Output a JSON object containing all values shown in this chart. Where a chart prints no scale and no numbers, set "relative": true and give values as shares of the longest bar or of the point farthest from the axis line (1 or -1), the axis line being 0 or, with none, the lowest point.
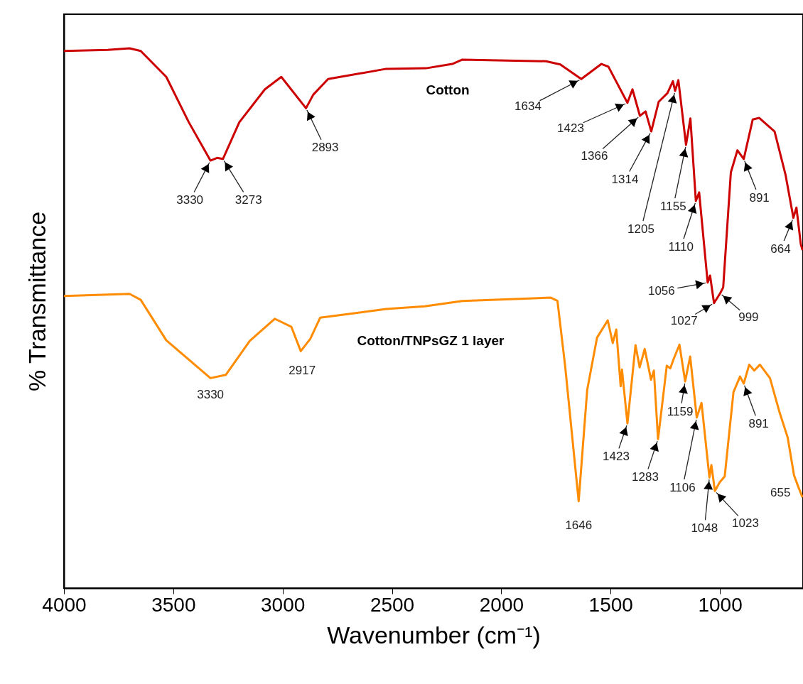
{
  "chart_data": {
    "type": "line",
    "relative": true,
    "xlabel": "Wavenumber (cm⁻¹)",
    "ylabel": "% Transmittance",
    "xlim": [
      4000,
      620
    ],
    "xticks": [
      4000,
      3500,
      3000,
      2500,
      2000,
      1500,
      1000
    ],
    "line_style": "solid",
    "marker": "none",
    "series": [
      {
        "name": "Cotton",
        "color": "#cc0000",
        "x": [
          4000,
          3800,
          3700,
          3649,
          3532,
          3429,
          3330,
          3300,
          3273,
          3198,
          3081,
          3006,
          2893,
          2860,
          2792,
          2526,
          2344,
          2224,
          2178,
          1795,
          1730,
          1634,
          1542,
          1510,
          1423,
          1400,
          1366,
          1340,
          1314,
          1280,
          1240,
          1215,
          1205,
          1190,
          1155,
          1135,
          1110,
          1095,
          1056,
          1045,
          1027,
          999,
          985,
          950,
          920,
          891,
          850,
          820,
          750,
          700,
          664,
          650,
          630,
          622
        ],
        "values": [
          0.995,
          0.997,
          1.0,
          0.995,
          0.947,
          0.863,
          0.792,
          0.797,
          0.795,
          0.863,
          0.924,
          0.947,
          0.889,
          0.914,
          0.943,
          0.962,
          0.963,
          0.971,
          0.979,
          0.976,
          0.97,
          0.943,
          0.971,
          0.966,
          0.899,
          0.924,
          0.875,
          0.883,
          0.846,
          0.901,
          0.917,
          0.939,
          0.921,
          0.941,
          0.821,
          0.87,
          0.717,
          0.733,
          0.566,
          0.579,
          0.528,
          0.546,
          0.557,
          0.77,
          0.811,
          0.795,
          0.868,
          0.871,
          0.846,
          0.766,
          0.686,
          0.705,
          0.637,
          0.626
        ]
      },
      {
        "name": "Cotton/TNPsGZ 1 layer",
        "color": "#ff8c00",
        "x": [
          4000,
          3700,
          3649,
          3532,
          3330,
          3260,
          3150,
          3036,
          2960,
          2917,
          2873,
          2828,
          2526,
          2350,
          2178,
          1773,
          1743,
          1708,
          1646,
          1607,
          1562,
          1513,
          1490,
          1474,
          1454,
          1448,
          1423,
          1386,
          1367,
          1344,
          1315,
          1302,
          1283,
          1243,
          1227,
          1211,
          1185,
          1159,
          1136,
          1106,
          1084,
          1048,
          1039,
          1023,
          1001,
          978,
          938,
          908,
          891,
          866,
          843,
          817,
          771,
          729,
          690,
          661,
          640,
          622
        ],
        "values": [
          0.541,
          0.545,
          0.534,
          0.459,
          0.389,
          0.395,
          0.458,
          0.499,
          0.484,
          0.439,
          0.462,
          0.501,
          0.517,
          0.522,
          0.532,
          0.538,
          0.532,
          0.412,
          0.161,
          0.367,
          0.464,
          0.496,
          0.454,
          0.479,
          0.374,
          0.405,
          0.305,
          0.45,
          0.409,
          0.443,
          0.386,
          0.403,
          0.276,
          0.412,
          0.407,
          0.425,
          0.451,
          0.383,
          0.429,
          0.316,
          0.343,
          0.205,
          0.228,
          0.18,
          0.196,
          0.207,
          0.363,
          0.392,
          0.379,
          0.414,
          0.403,
          0.414,
          0.389,
          0.328,
          0.279,
          0.209,
          0.186,
          0.168
        ]
      }
    ],
    "annotations": [
      {
        "text": "3330",
        "x": 3330,
        "y": 0.792
      },
      {
        "text": "3273",
        "x": 3273,
        "y": 0.795
      },
      {
        "text": "2893",
        "x": 2893,
        "y": 0.889
      },
      {
        "text": "1634",
        "x": 1634,
        "y": 0.943
      },
      {
        "text": "1423",
        "x": 1423,
        "y": 0.899
      },
      {
        "text": "1366",
        "x": 1366,
        "y": 0.875
      },
      {
        "text": "1314",
        "x": 1314,
        "y": 0.846
      },
      {
        "text": "1205",
        "x": 1205,
        "y": 0.921
      },
      {
        "text": "1155",
        "x": 1155,
        "y": 0.821
      },
      {
        "text": "1110",
        "x": 1110,
        "y": 0.717
      },
      {
        "text": "1056",
        "x": 1056,
        "y": 0.566
      },
      {
        "text": "1027",
        "x": 1027,
        "y": 0.528
      },
      {
        "text": "999",
        "x": 999,
        "y": 0.546
      },
      {
        "text": "891",
        "x": 891,
        "y": 0.795
      },
      {
        "text": "664",
        "x": 664,
        "y": 0.686
      },
      {
        "text": "3330",
        "x": 3330,
        "y": 0.389
      },
      {
        "text": "2917",
        "x": 2917,
        "y": 0.439
      },
      {
        "text": "1646",
        "x": 1646,
        "y": 0.161
      },
      {
        "text": "1423",
        "x": 1423,
        "y": 0.305
      },
      {
        "text": "1283",
        "x": 1283,
        "y": 0.276
      },
      {
        "text": "1159",
        "x": 1159,
        "y": 0.383
      },
      {
        "text": "1106",
        "x": 1106,
        "y": 0.316
      },
      {
        "text": "1048",
        "x": 1048,
        "y": 0.205
      },
      {
        "text": "1023",
        "x": 1023,
        "y": 0.18
      },
      {
        "text": "891",
        "x": 891,
        "y": 0.379
      },
      {
        "text": "655",
        "x": 655,
        "y": 0.186
      }
    ]
  }
}
